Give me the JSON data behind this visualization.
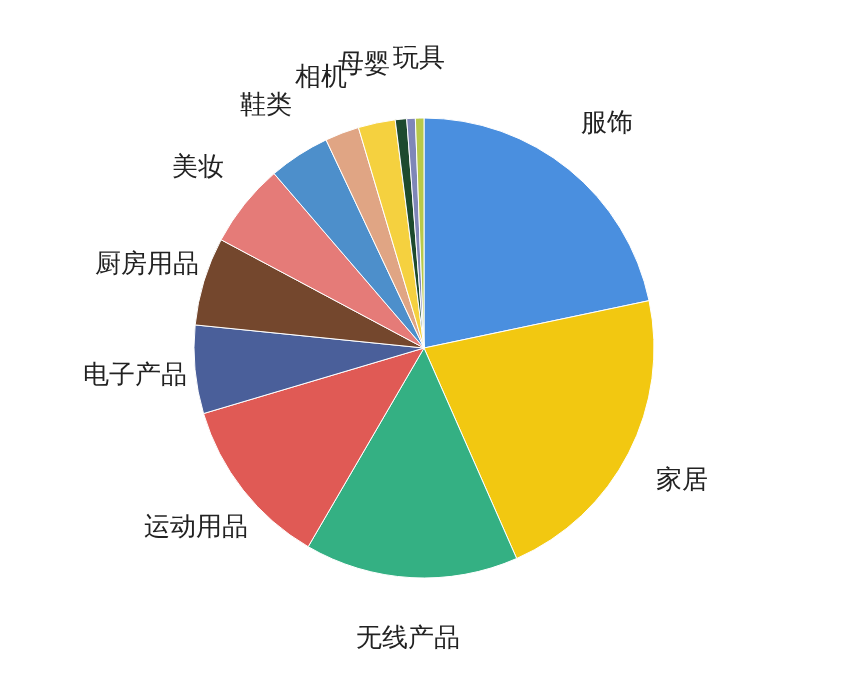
{
  "chart_data": {
    "type": "pie",
    "categories": [
      "服饰",
      "家居",
      "无线产品",
      "运动用品",
      "电子产品",
      "厨房用品",
      "美妆",
      "鞋类",
      "相机",
      "母婴",
      null,
      null,
      "玩具"
    ],
    "values": [
      21.7,
      21.7,
      15,
      12,
      6.2,
      6.2,
      5.9,
      4.3,
      2.4,
      2.6,
      0.8,
      0.6,
      0.6
    ],
    "colors": [
      "#4a8fdf",
      "#f2c811",
      "#34b083",
      "#e05a55",
      "#4a5f9a",
      "#74472d",
      "#e57b78",
      "#4d8fcb",
      "#e0a584",
      "#f5d13f",
      "#1d4a2e",
      "#7f86b8",
      "#b8c94a"
    ],
    "legend": false
  }
}
